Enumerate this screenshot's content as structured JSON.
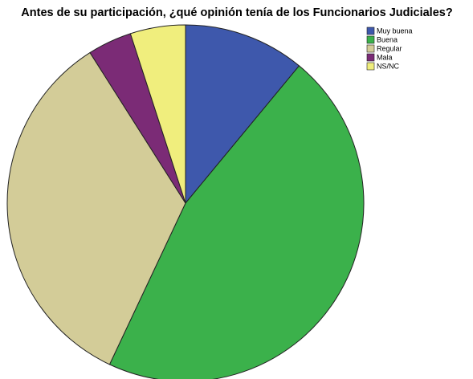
{
  "chart_data": {
    "type": "pie",
    "title": "Antes de su participación, ¿qué opinión tenía de los Funcionarios Judiciales?",
    "categories": [
      "Muy buena",
      "Buena",
      "Regular",
      "Mala",
      "NS/NC"
    ],
    "values": [
      11,
      46,
      34,
      4,
      5
    ],
    "colors": [
      "#3e58ac",
      "#3bb14b",
      "#d3cc98",
      "#7b2b76",
      "#f0ee7d"
    ],
    "legend": "top-right"
  }
}
